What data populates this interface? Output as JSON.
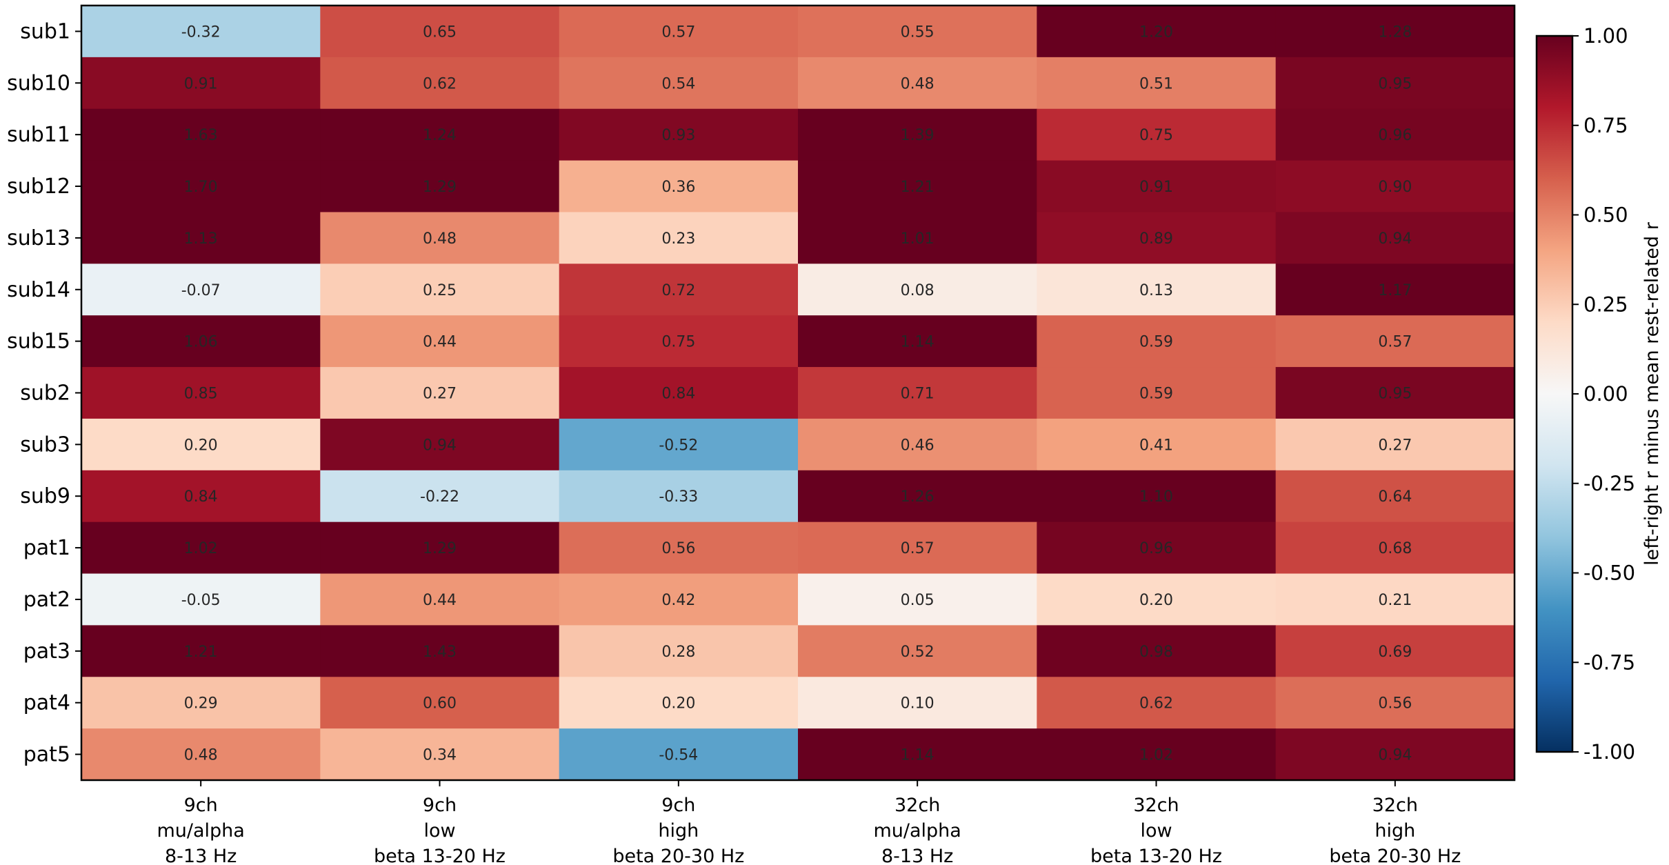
{
  "chart_data": {
    "type": "heatmap",
    "rows": [
      "sub1",
      "sub10",
      "sub11",
      "sub12",
      "sub13",
      "sub14",
      "sub15",
      "sub2",
      "sub3",
      "sub9",
      "pat1",
      "pat2",
      "pat3",
      "pat4",
      "pat5"
    ],
    "columns": [
      [
        "9ch",
        "mu/alpha",
        "8-13 Hz"
      ],
      [
        "9ch",
        "low",
        "beta 13-20 Hz"
      ],
      [
        "9ch",
        "high",
        "beta 20-30 Hz"
      ],
      [
        "32ch",
        "mu/alpha",
        "8-13 Hz"
      ],
      [
        "32ch",
        "low",
        "beta 13-20 Hz"
      ],
      [
        "32ch",
        "high",
        "beta 20-30 Hz"
      ]
    ],
    "values": [
      [
        -0.32,
        0.65,
        0.57,
        0.55,
        1.2,
        1.28
      ],
      [
        0.91,
        0.62,
        0.54,
        0.48,
        0.51,
        0.95
      ],
      [
        1.63,
        1.24,
        0.93,
        1.39,
        0.75,
        0.96
      ],
      [
        1.7,
        1.29,
        0.36,
        1.21,
        0.91,
        0.9
      ],
      [
        1.13,
        0.48,
        0.23,
        1.01,
        0.89,
        0.94
      ],
      [
        -0.07,
        0.25,
        0.72,
        0.08,
        0.13,
        1.17
      ],
      [
        1.06,
        0.44,
        0.75,
        1.14,
        0.59,
        0.57
      ],
      [
        0.85,
        0.27,
        0.84,
        0.71,
        0.59,
        0.95
      ],
      [
        0.2,
        0.94,
        -0.52,
        0.46,
        0.41,
        0.27
      ],
      [
        0.84,
        -0.22,
        -0.33,
        1.26,
        1.1,
        0.64
      ],
      [
        1.02,
        1.29,
        0.56,
        0.57,
        0.96,
        0.68
      ],
      [
        -0.05,
        0.44,
        0.42,
        0.05,
        0.2,
        0.21
      ],
      [
        1.21,
        1.43,
        0.28,
        0.52,
        0.98,
        0.69
      ],
      [
        0.29,
        0.6,
        0.2,
        0.1,
        0.62,
        0.56
      ],
      [
        0.48,
        0.34,
        -0.54,
        1.14,
        1.02,
        0.94
      ]
    ],
    "value_format": "2 decimals",
    "colormap": "RdBu_r",
    "color_range": [
      -1.0,
      1.0
    ],
    "colorbar": {
      "ticks": [
        "1.00",
        "0.75",
        "0.50",
        "0.25",
        "0.00",
        "-0.25",
        "-0.50",
        "-0.75",
        "-1.00"
      ],
      "label": "left-right r minus mean rest-related r",
      "position": "right"
    },
    "title": "",
    "xlabel": "",
    "ylabel": ""
  }
}
